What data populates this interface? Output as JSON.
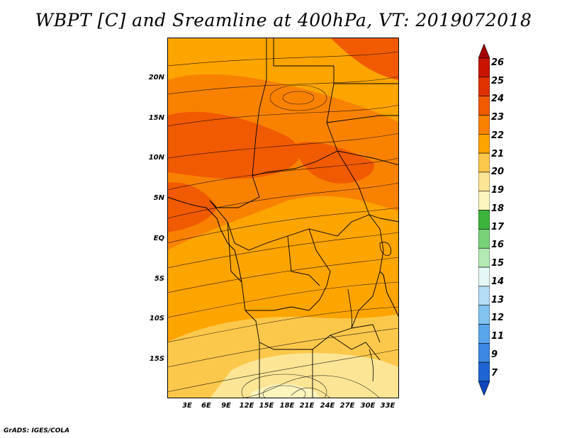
{
  "title": "WBPT [C] and Sreamline at 400hPa, VT: 2019072018",
  "credit": "GrADS: IGES/COLA",
  "map": {
    "lat_labels": [
      "20N",
      "15N",
      "10N",
      "5N",
      "EQ",
      "5S",
      "10S",
      "15S"
    ],
    "lon_labels": [
      "3E",
      "6E",
      "9E",
      "12E",
      "15E",
      "18E",
      "21E",
      "24E",
      "27E",
      "30E",
      "33E"
    ]
  },
  "colorbar": {
    "labels": [
      "26",
      "25",
      "24",
      "23",
      "22",
      "21",
      "20",
      "19",
      "18",
      "17",
      "16",
      "15",
      "14",
      "13",
      "12",
      "11",
      "9",
      "7"
    ],
    "colors": [
      "#a50000",
      "#c81400",
      "#e03200",
      "#f05a00",
      "#f88200",
      "#fca400",
      "#fcc84c",
      "#fce696",
      "#fcf5be",
      "#3cb43c",
      "#78d278",
      "#b4ebb4",
      "#e6f8f5",
      "#b4dcf5",
      "#82c3f0",
      "#5aa5eb",
      "#3c87e1",
      "#1e64d2",
      "#0f46be"
    ]
  }
}
